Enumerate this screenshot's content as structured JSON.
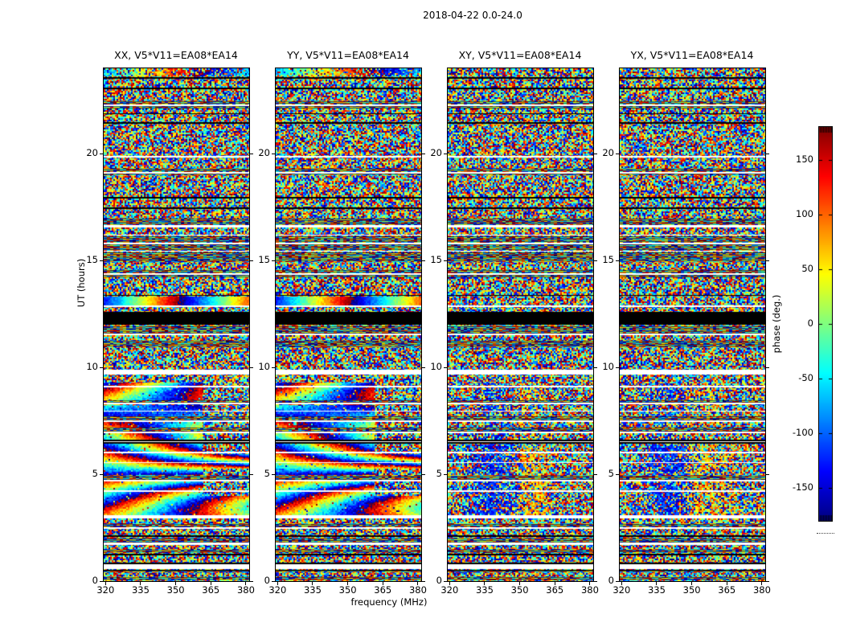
{
  "figure": {
    "title": "2018-04-22 0.0-24.0"
  },
  "chart_data": {
    "type": "heatmap",
    "title": "2018-04-22 0.0-24.0",
    "xlabel": "frequency (MHz)",
    "ylabel": "UT (hours)",
    "x_ticks": [
      320,
      335,
      350,
      365,
      380
    ],
    "y_ticks": [
      0,
      5,
      10,
      15,
      20
    ],
    "x_range": [
      319.2,
      381.4
    ],
    "y_range": [
      0,
      24
    ],
    "colormap": "jet",
    "grid": false,
    "panels": [
      {
        "id": "XX",
        "title": "XX, V5*V11=EA08*EA14",
        "coherent_fringes": true
      },
      {
        "id": "YY",
        "title": "YY, V5*V11=EA08*EA14",
        "coherent_fringes": true
      },
      {
        "id": "XY",
        "title": "XY, V5*V11=EA08*EA14",
        "coherent_fringes": false
      },
      {
        "id": "YX",
        "title": "YX, V5*V11=EA08*EA14",
        "coherent_fringes": false
      }
    ],
    "colorbar": {
      "label": "phase (deg.)",
      "ticks": [
        150,
        100,
        50,
        0,
        -50,
        -100,
        -150
      ],
      "vmin": -180,
      "vmax": 180,
      "hatched_ends": true
    },
    "features": {
      "white_gaps": [
        [
          22.28,
          0.04
        ],
        [
          19.85,
          0.04
        ],
        [
          19.12,
          0.03
        ],
        [
          16.6,
          0.05
        ],
        [
          16.19,
          0.03
        ],
        [
          15.81,
          0.03
        ],
        [
          15.44,
          0.03
        ],
        [
          14.38,
          0.04
        ],
        [
          12.85,
          0.04
        ],
        [
          11.55,
          0.03
        ],
        [
          9.78,
          0.1
        ],
        [
          9.1,
          0.04
        ],
        [
          8.32,
          0.03
        ],
        [
          7.95,
          0.03
        ],
        [
          7.48,
          0.04
        ],
        [
          6.95,
          0.04
        ],
        [
          6.52,
          0.025
        ],
        [
          6.03,
          0.04
        ],
        [
          5.55,
          0.03
        ],
        [
          4.7,
          0.04
        ],
        [
          4.22,
          0.03
        ],
        [
          3.0,
          0.08
        ],
        [
          2.47,
          0.04
        ],
        [
          1.75,
          0.04
        ],
        [
          0.67,
          0.12
        ]
      ],
      "black_bands": [
        [
          23.52,
          23.58
        ],
        [
          23.03,
          23.08
        ],
        [
          21.84,
          21.89
        ],
        [
          21.42,
          21.47
        ],
        [
          17.92,
          17.97
        ],
        [
          17.43,
          17.48
        ],
        [
          13.36,
          13.41
        ],
        [
          12.0,
          12.6
        ],
        [
          6.44,
          6.62
        ],
        [
          2.08,
          2.13
        ],
        [
          1.22,
          1.27
        ],
        [
          0.8,
          0.85
        ],
        [
          0.5,
          0.54
        ]
      ],
      "striped_rows": [
        [
          22.12,
          22.45
        ],
        [
          19.0,
          19.35
        ],
        [
          16.62,
          16.95
        ],
        [
          15.85,
          16.15
        ],
        [
          15.46,
          15.76
        ],
        [
          14.95,
          15.4
        ],
        [
          14.22,
          14.55
        ],
        [
          11.6,
          11.98
        ],
        [
          10.95,
          11.25
        ],
        [
          8.22,
          8.45
        ],
        [
          7.52,
          7.72
        ],
        [
          6.98,
          7.18
        ],
        [
          4.75,
          4.95
        ],
        [
          2.5,
          2.7
        ],
        [
          1.78,
          2.04
        ],
        [
          1.3,
          1.5
        ],
        [
          0.43,
          0.49
        ],
        [
          0.05,
          0.2
        ]
      ],
      "fringe_interval": [
        3.08,
        9.3
      ],
      "fringe_row": [
        12.92,
        13.32
      ],
      "top_coherent_row": [
        23.62,
        24.0
      ],
      "rfi_freq_min": 361.5,
      "rfi_time_intervals": [
        [
          4.0,
          5.25
        ],
        [
          5.95,
          9.3
        ]
      ],
      "crosshand_blue_blob": {
        "center_mhz": 339,
        "sigma_mhz": 9,
        "phase_deg": -125
      },
      "crosshand_warm_blob": {
        "center_mhz": 356,
        "sigma_mhz": 8,
        "phase_deg": 70
      }
    }
  }
}
